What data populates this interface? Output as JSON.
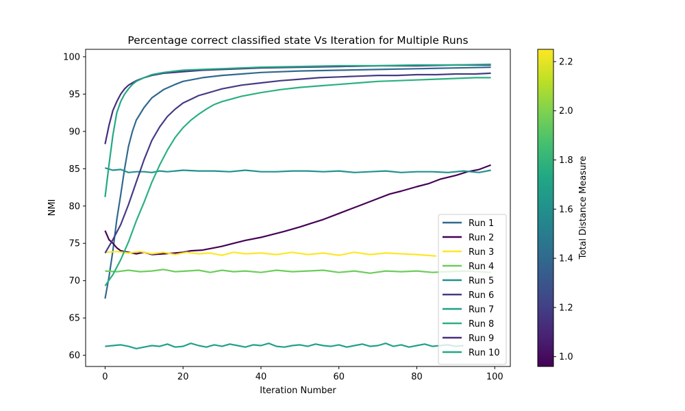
{
  "chart_data": {
    "type": "line",
    "title": "Percentage correct classified state Vs Iteration for Multiple Runs",
    "xlabel": "Iteration Number",
    "ylabel": "NMI",
    "xlim": [
      -5,
      104
    ],
    "ylim": [
      58.5,
      101
    ],
    "xticks": [
      0,
      20,
      40,
      60,
      80,
      100
    ],
    "yticks": [
      60,
      65,
      70,
      75,
      80,
      85,
      90,
      95,
      100
    ],
    "grid": false,
    "legend_position": "lower-right",
    "colorbar": {
      "label": "Total Distance Measure",
      "range": [
        0.96,
        2.25
      ],
      "ticks": [
        1.0,
        1.2,
        1.4,
        1.6,
        1.8,
        2.0,
        2.2
      ],
      "colormap": "viridis"
    },
    "series": [
      {
        "name": "Run 1",
        "color": "#31688e",
        "points": [
          [
            0,
            67.6
          ],
          [
            1,
            70.5
          ],
          [
            2,
            74
          ],
          [
            3,
            78.2
          ],
          [
            4,
            81.5
          ],
          [
            5,
            85
          ],
          [
            6,
            88
          ],
          [
            7,
            90
          ],
          [
            8,
            91.5
          ],
          [
            10,
            93.2
          ],
          [
            12,
            94.5
          ],
          [
            15,
            95.6
          ],
          [
            18,
            96.3
          ],
          [
            20,
            96.7
          ],
          [
            25,
            97.2
          ],
          [
            30,
            97.5
          ],
          [
            35,
            97.7
          ],
          [
            40,
            97.9
          ],
          [
            50,
            98.1
          ],
          [
            60,
            98.2
          ],
          [
            70,
            98.3
          ],
          [
            80,
            98.4
          ],
          [
            90,
            98.5
          ],
          [
            99,
            98.6
          ]
        ]
      },
      {
        "name": "Run 2",
        "color": "#440154",
        "points": [
          [
            0,
            76.7
          ],
          [
            1,
            75.5
          ],
          [
            2,
            75
          ],
          [
            3,
            74.4
          ],
          [
            4,
            74
          ],
          [
            6,
            73.8
          ],
          [
            8,
            73.6
          ],
          [
            10,
            73.8
          ],
          [
            12,
            73.5
          ],
          [
            15,
            73.6
          ],
          [
            18,
            73.7
          ],
          [
            20,
            73.8
          ],
          [
            22,
            74
          ],
          [
            25,
            74.1
          ],
          [
            28,
            74.4
          ],
          [
            30,
            74.6
          ],
          [
            33,
            75
          ],
          [
            36,
            75.4
          ],
          [
            40,
            75.8
          ],
          [
            43,
            76.2
          ],
          [
            46,
            76.6
          ],
          [
            50,
            77.2
          ],
          [
            53,
            77.7
          ],
          [
            56,
            78.2
          ],
          [
            60,
            79
          ],
          [
            63,
            79.6
          ],
          [
            66,
            80.2
          ],
          [
            70,
            81
          ],
          [
            73,
            81.6
          ],
          [
            76,
            82
          ],
          [
            80,
            82.6
          ],
          [
            83,
            83
          ],
          [
            86,
            83.6
          ],
          [
            90,
            84.1
          ],
          [
            93,
            84.6
          ],
          [
            96,
            84.9
          ],
          [
            99,
            85.5
          ]
        ]
      },
      {
        "name": "Run 3",
        "color": "#fde725",
        "points": [
          [
            0,
            73.8
          ],
          [
            3,
            73.9
          ],
          [
            6,
            73.7
          ],
          [
            9,
            73.9
          ],
          [
            12,
            73.6
          ],
          [
            15,
            73.8
          ],
          [
            18,
            73.5
          ],
          [
            21,
            73.8
          ],
          [
            24,
            73.6
          ],
          [
            27,
            73.7
          ],
          [
            30,
            73.4
          ],
          [
            33,
            73.8
          ],
          [
            36,
            73.6
          ],
          [
            40,
            73.7
          ],
          [
            44,
            73.5
          ],
          [
            48,
            73.8
          ],
          [
            52,
            73.5
          ],
          [
            56,
            73.7
          ],
          [
            60,
            73.4
          ],
          [
            64,
            73.8
          ],
          [
            68,
            73.5
          ],
          [
            72,
            73.7
          ],
          [
            76,
            73.6
          ],
          [
            80,
            73.5
          ],
          [
            85,
            73.3
          ]
        ]
      },
      {
        "name": "Run 4",
        "color": "#6ccd5a",
        "points": [
          [
            0,
            71.3
          ],
          [
            3,
            71.2
          ],
          [
            6,
            71.4
          ],
          [
            9,
            71.2
          ],
          [
            12,
            71.3
          ],
          [
            15,
            71.5
          ],
          [
            18,
            71.2
          ],
          [
            21,
            71.3
          ],
          [
            24,
            71.4
          ],
          [
            27,
            71.1
          ],
          [
            30,
            71.4
          ],
          [
            33,
            71.2
          ],
          [
            36,
            71.3
          ],
          [
            40,
            71.1
          ],
          [
            44,
            71.4
          ],
          [
            48,
            71.2
          ],
          [
            52,
            71.3
          ],
          [
            56,
            71.4
          ],
          [
            60,
            71.1
          ],
          [
            64,
            71.3
          ],
          [
            68,
            71
          ],
          [
            72,
            71.3
          ],
          [
            76,
            71.2
          ],
          [
            80,
            71.3
          ],
          [
            84,
            71.1
          ],
          [
            88,
            71.2
          ],
          [
            92,
            71.3
          ],
          [
            96,
            71.2
          ],
          [
            99,
            71.1
          ]
        ]
      },
      {
        "name": "Run 5",
        "color": "#21918c",
        "points": [
          [
            0,
            85.1
          ],
          [
            2,
            84.8
          ],
          [
            4,
            84.9
          ],
          [
            6,
            84.5
          ],
          [
            8,
            84.6
          ],
          [
            10,
            84.6
          ],
          [
            12,
            84.5
          ],
          [
            14,
            84.7
          ],
          [
            16,
            84.6
          ],
          [
            18,
            84.7
          ],
          [
            20,
            84.8
          ],
          [
            24,
            84.7
          ],
          [
            28,
            84.7
          ],
          [
            32,
            84.6
          ],
          [
            36,
            84.8
          ],
          [
            40,
            84.6
          ],
          [
            44,
            84.6
          ],
          [
            48,
            84.7
          ],
          [
            52,
            84.7
          ],
          [
            56,
            84.6
          ],
          [
            60,
            84.7
          ],
          [
            64,
            84.5
          ],
          [
            68,
            84.6
          ],
          [
            72,
            84.7
          ],
          [
            76,
            84.5
          ],
          [
            80,
            84.6
          ],
          [
            84,
            84.6
          ],
          [
            88,
            84.5
          ],
          [
            92,
            84.7
          ],
          [
            96,
            84.5
          ],
          [
            99,
            84.8
          ]
        ]
      },
      {
        "name": "Run 6",
        "color": "#443a83",
        "points": [
          [
            0,
            73.7
          ],
          [
            2,
            75.5
          ],
          [
            4,
            77.5
          ],
          [
            6,
            80.2
          ],
          [
            8,
            83.2
          ],
          [
            10,
            86.2
          ],
          [
            12,
            88.8
          ],
          [
            14,
            90.6
          ],
          [
            16,
            92
          ],
          [
            18,
            93
          ],
          [
            20,
            93.8
          ],
          [
            22,
            94.3
          ],
          [
            24,
            94.8
          ],
          [
            26,
            95.1
          ],
          [
            28,
            95.4
          ],
          [
            30,
            95.7
          ],
          [
            35,
            96.2
          ],
          [
            40,
            96.5
          ],
          [
            45,
            96.8
          ],
          [
            50,
            97
          ],
          [
            55,
            97.2
          ],
          [
            60,
            97.3
          ],
          [
            65,
            97.4
          ],
          [
            70,
            97.5
          ],
          [
            75,
            97.5
          ],
          [
            80,
            97.6
          ],
          [
            85,
            97.6
          ],
          [
            90,
            97.7
          ],
          [
            95,
            97.7
          ],
          [
            99,
            97.8
          ]
        ]
      },
      {
        "name": "Run 7",
        "color": "#1fa088",
        "points": [
          [
            0,
            61.2
          ],
          [
            2,
            61.3
          ],
          [
            4,
            61.4
          ],
          [
            6,
            61.2
          ],
          [
            8,
            60.9
          ],
          [
            10,
            61.1
          ],
          [
            12,
            61.3
          ],
          [
            14,
            61.2
          ],
          [
            16,
            61.5
          ],
          [
            18,
            61.1
          ],
          [
            20,
            61.2
          ],
          [
            22,
            61.6
          ],
          [
            24,
            61.3
          ],
          [
            26,
            61.1
          ],
          [
            28,
            61.4
          ],
          [
            30,
            61.2
          ],
          [
            32,
            61.5
          ],
          [
            34,
            61.3
          ],
          [
            36,
            61.1
          ],
          [
            38,
            61.4
          ],
          [
            40,
            61.3
          ],
          [
            42,
            61.6
          ],
          [
            44,
            61.2
          ],
          [
            46,
            61.1
          ],
          [
            48,
            61.3
          ],
          [
            50,
            61.4
          ],
          [
            52,
            61.2
          ],
          [
            54,
            61.5
          ],
          [
            56,
            61.3
          ],
          [
            58,
            61.2
          ],
          [
            60,
            61.4
          ],
          [
            62,
            61.1
          ],
          [
            64,
            61.3
          ],
          [
            66,
            61.5
          ],
          [
            68,
            61.2
          ],
          [
            70,
            61.3
          ],
          [
            72,
            61.6
          ],
          [
            74,
            61.2
          ],
          [
            76,
            61.4
          ],
          [
            78,
            61.1
          ],
          [
            80,
            61.3
          ],
          [
            82,
            61.5
          ],
          [
            84,
            61.2
          ],
          [
            86,
            61.3
          ],
          [
            88,
            61.4
          ],
          [
            90,
            61.2
          ],
          [
            92,
            61.3
          ]
        ]
      },
      {
        "name": "Run 8",
        "color": "#2ab07f",
        "points": [
          [
            0,
            69.3
          ],
          [
            2,
            70.8
          ],
          [
            4,
            72.8
          ],
          [
            6,
            75.2
          ],
          [
            8,
            78
          ],
          [
            10,
            80.5
          ],
          [
            12,
            83.2
          ],
          [
            14,
            85.5
          ],
          [
            16,
            87.5
          ],
          [
            18,
            89.2
          ],
          [
            20,
            90.5
          ],
          [
            22,
            91.5
          ],
          [
            24,
            92.3
          ],
          [
            26,
            93
          ],
          [
            28,
            93.6
          ],
          [
            30,
            94
          ],
          [
            35,
            94.7
          ],
          [
            40,
            95.2
          ],
          [
            45,
            95.6
          ],
          [
            50,
            95.9
          ],
          [
            55,
            96.1
          ],
          [
            60,
            96.3
          ],
          [
            65,
            96.5
          ],
          [
            70,
            96.7
          ],
          [
            75,
            96.8
          ],
          [
            80,
            96.9
          ],
          [
            85,
            97
          ],
          [
            90,
            97.1
          ],
          [
            95,
            97.2
          ],
          [
            99,
            97.2
          ]
        ]
      },
      {
        "name": "Run 9",
        "color": "#472d7b",
        "points": [
          [
            0,
            88.3
          ],
          [
            1,
            90.8
          ],
          [
            2,
            92.8
          ],
          [
            3,
            94
          ],
          [
            4,
            95
          ],
          [
            5,
            95.7
          ],
          [
            6,
            96.2
          ],
          [
            7,
            96.5
          ],
          [
            8,
            96.8
          ],
          [
            10,
            97.2
          ],
          [
            12,
            97.5
          ],
          [
            15,
            97.8
          ],
          [
            20,
            98
          ],
          [
            25,
            98.2
          ],
          [
            30,
            98.3
          ],
          [
            40,
            98.5
          ],
          [
            50,
            98.6
          ],
          [
            60,
            98.7
          ],
          [
            70,
            98.8
          ],
          [
            80,
            98.8
          ],
          [
            90,
            98.9
          ],
          [
            99,
            98.9
          ]
        ]
      },
      {
        "name": "Run 10",
        "color": "#22a785",
        "points": [
          [
            0,
            81.2
          ],
          [
            1,
            85.5
          ],
          [
            2,
            89.5
          ],
          [
            3,
            92.5
          ],
          [
            4,
            94
          ],
          [
            5,
            95
          ],
          [
            6,
            95.7
          ],
          [
            7,
            96.3
          ],
          [
            8,
            96.7
          ],
          [
            10,
            97.2
          ],
          [
            12,
            97.6
          ],
          [
            15,
            97.9
          ],
          [
            20,
            98.2
          ],
          [
            25,
            98.3
          ],
          [
            30,
            98.4
          ],
          [
            40,
            98.6
          ],
          [
            50,
            98.7
          ],
          [
            60,
            98.8
          ],
          [
            70,
            98.8
          ],
          [
            80,
            98.9
          ],
          [
            90,
            98.9
          ],
          [
            99,
            99
          ]
        ]
      }
    ]
  }
}
